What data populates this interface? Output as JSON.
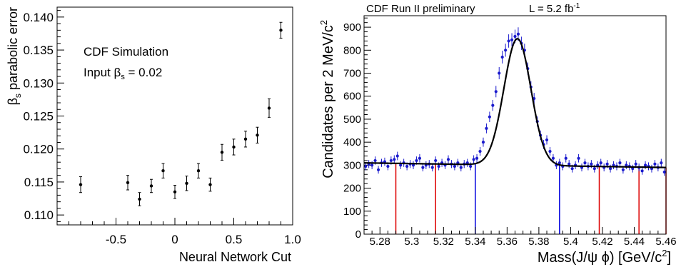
{
  "chart_data": [
    {
      "type": "scatter",
      "title": "",
      "xlabel": "Neural Network Cut",
      "ylabel_prefix": "β",
      "ylabel_sub": "s",
      "ylabel_suffix": " parabolic error",
      "xlim": [
        -1.0,
        1.0
      ],
      "ylim": [
        0.1085,
        0.1415
      ],
      "x_ticks": [
        -0.5,
        0.0,
        0.5,
        1.0
      ],
      "x_tick_labels": [
        "-0.5",
        "0",
        "0.5",
        "1.0"
      ],
      "y_ticks": [
        0.11,
        0.115,
        0.12,
        0.125,
        0.13,
        0.135,
        0.14
      ],
      "y_tick_labels": [
        "0.110",
        "0.115",
        "0.120",
        "0.125",
        "0.130",
        "0.135",
        "0.140"
      ],
      "annotation_line1": "CDF Simulation",
      "annotation_line2_prefix": "Input β",
      "annotation_line2_sub": "s",
      "annotation_line2_suffix": " = 0.02",
      "marker_color": "#000000",
      "points": [
        {
          "x": -0.8,
          "y": 0.1146,
          "err": 0.0012
        },
        {
          "x": -0.4,
          "y": 0.1149,
          "err": 0.0011
        },
        {
          "x": -0.3,
          "y": 0.1124,
          "err": 0.001
        },
        {
          "x": -0.2,
          "y": 0.1144,
          "err": 0.001
        },
        {
          "x": -0.1,
          "y": 0.1167,
          "err": 0.0011
        },
        {
          "x": 0.0,
          "y": 0.1135,
          "err": 0.001
        },
        {
          "x": 0.1,
          "y": 0.1148,
          "err": 0.0011
        },
        {
          "x": 0.2,
          "y": 0.1167,
          "err": 0.0011
        },
        {
          "x": 0.3,
          "y": 0.1146,
          "err": 0.001
        },
        {
          "x": 0.4,
          "y": 0.1195,
          "err": 0.0012
        },
        {
          "x": 0.5,
          "y": 0.1203,
          "err": 0.0012
        },
        {
          "x": 0.6,
          "y": 0.1215,
          "err": 0.0012
        },
        {
          "x": 0.7,
          "y": 0.1221,
          "err": 0.0012
        },
        {
          "x": 0.8,
          "y": 0.1262,
          "err": 0.0014
        },
        {
          "x": 0.9,
          "y": 0.138,
          "err": 0.0012
        }
      ]
    },
    {
      "type": "scatter",
      "title_left": "CDF Run II preliminary",
      "title_right_prefix": "L = 5.2 fb",
      "title_right_sup": "-1",
      "ylabel": "Candidates per 2 MeV/c",
      "ylabel_sup": "2",
      "xlabel": "Mass(J/ψ ϕ) [GeV/c",
      "xlabel_sup": "2",
      "xlabel_end": "]",
      "xlim": [
        5.27,
        5.46
      ],
      "ylim": [
        0,
        950
      ],
      "x_ticks": [
        5.28,
        5.3,
        5.32,
        5.34,
        5.36,
        5.38,
        5.4,
        5.42,
        5.44,
        5.46
      ],
      "x_tick_labels": [
        "5.28",
        "5.3",
        "5.32",
        "5.34",
        "5.36",
        "5.38",
        "5.4",
        "5.42",
        "5.44",
        "5.46"
      ],
      "y_ticks": [
        0,
        100,
        200,
        300,
        400,
        500,
        600,
        700,
        800,
        900
      ],
      "y_tick_labels": [
        "0",
        "100",
        "200",
        "300",
        "400",
        "500",
        "600",
        "700",
        "800",
        "900"
      ],
      "data_color": "#1a1acd",
      "fit_color": "#000000",
      "fit": {
        "bg_at_low": 310,
        "bg_at_high": 290,
        "peak_mass": 5.3665,
        "peak_height": 550,
        "sigma": 0.0085
      },
      "sideband_lines": [
        {
          "x": 5.29,
          "color": "#dd0000"
        },
        {
          "x": 5.315,
          "color": "#dd0000"
        },
        {
          "x": 5.34,
          "color": "#0000dd"
        },
        {
          "x": 5.393,
          "color": "#0000dd"
        },
        {
          "x": 5.418,
          "color": "#dd0000"
        },
        {
          "x": 5.443,
          "color": "#dd0000"
        },
        {
          "x": 5.46,
          "color": "#dd0000"
        }
      ],
      "points": [
        [
          5.271,
          295
        ],
        [
          5.273,
          305
        ],
        [
          5.275,
          300
        ],
        [
          5.277,
          320
        ],
        [
          5.279,
          280
        ],
        [
          5.281,
          310
        ],
        [
          5.283,
          315
        ],
        [
          5.285,
          295
        ],
        [
          5.287,
          320
        ],
        [
          5.289,
          325
        ],
        [
          5.291,
          340
        ],
        [
          5.293,
          300
        ],
        [
          5.295,
          310
        ],
        [
          5.297,
          295
        ],
        [
          5.299,
          305
        ],
        [
          5.301,
          300
        ],
        [
          5.303,
          320
        ],
        [
          5.305,
          330
        ],
        [
          5.307,
          290
        ],
        [
          5.309,
          300
        ],
        [
          5.311,
          305
        ],
        [
          5.313,
          290
        ],
        [
          5.315,
          320
        ],
        [
          5.317,
          295
        ],
        [
          5.319,
          310
        ],
        [
          5.321,
          300
        ],
        [
          5.323,
          325
        ],
        [
          5.325,
          305
        ],
        [
          5.327,
          295
        ],
        [
          5.329,
          310
        ],
        [
          5.331,
          290
        ],
        [
          5.333,
          305
        ],
        [
          5.335,
          310
        ],
        [
          5.337,
          295
        ],
        [
          5.339,
          325
        ],
        [
          5.341,
          330
        ],
        [
          5.343,
          360
        ],
        [
          5.345,
          400
        ],
        [
          5.347,
          460
        ],
        [
          5.349,
          510
        ],
        [
          5.351,
          560
        ],
        [
          5.353,
          620
        ],
        [
          5.355,
          700
        ],
        [
          5.357,
          770
        ],
        [
          5.359,
          800
        ],
        [
          5.361,
          840
        ],
        [
          5.363,
          845
        ],
        [
          5.365,
          860
        ],
        [
          5.367,
          870
        ],
        [
          5.369,
          830
        ],
        [
          5.371,
          800
        ],
        [
          5.373,
          720
        ],
        [
          5.375,
          640
        ],
        [
          5.377,
          590
        ],
        [
          5.379,
          490
        ],
        [
          5.381,
          430
        ],
        [
          5.383,
          390
        ],
        [
          5.385,
          410
        ],
        [
          5.387,
          360
        ],
        [
          5.389,
          330
        ],
        [
          5.391,
          300
        ],
        [
          5.393,
          310
        ],
        [
          5.395,
          295
        ],
        [
          5.397,
          330
        ],
        [
          5.399,
          305
        ],
        [
          5.401,
          285
        ],
        [
          5.403,
          300
        ],
        [
          5.405,
          330
        ],
        [
          5.407,
          290
        ],
        [
          5.409,
          310
        ],
        [
          5.411,
          295
        ],
        [
          5.413,
          305
        ],
        [
          5.415,
          285
        ],
        [
          5.417,
          300
        ],
        [
          5.419,
          310
        ],
        [
          5.421,
          290
        ],
        [
          5.423,
          305
        ],
        [
          5.425,
          285
        ],
        [
          5.427,
          300
        ],
        [
          5.429,
          295
        ],
        [
          5.431,
          310
        ],
        [
          5.433,
          280
        ],
        [
          5.435,
          300
        ],
        [
          5.437,
          295
        ],
        [
          5.439,
          285
        ],
        [
          5.441,
          305
        ],
        [
          5.443,
          290
        ],
        [
          5.445,
          275
        ],
        [
          5.447,
          300
        ],
        [
          5.449,
          295
        ],
        [
          5.451,
          285
        ],
        [
          5.453,
          305
        ],
        [
          5.455,
          290
        ],
        [
          5.457,
          310
        ],
        [
          5.459,
          270
        ]
      ]
    }
  ]
}
